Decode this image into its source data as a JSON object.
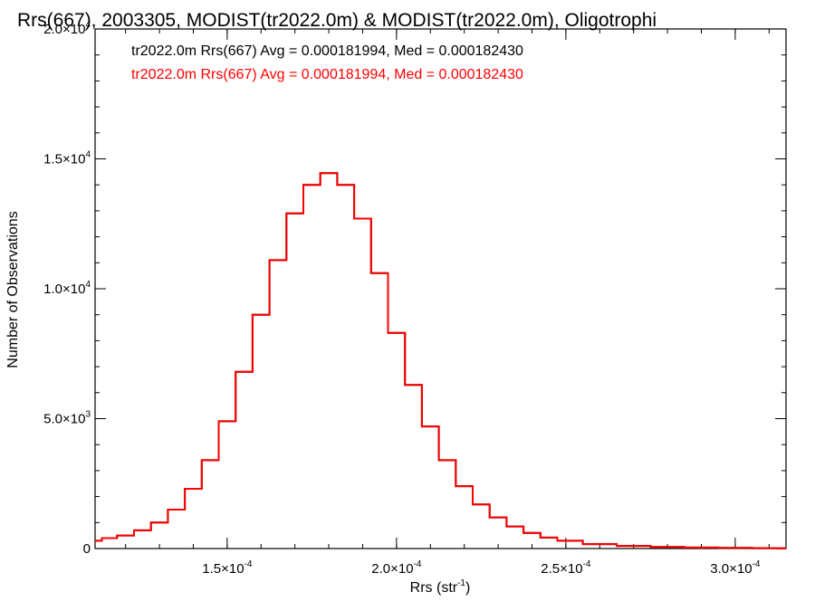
{
  "chart_data": {
    "type": "histogram",
    "title": "Rrs(667), 2003305, MODIST(tr2022.0m) & MODIST(tr2022.0m), Oligotrophi",
    "xlabel": "Rrs (str",
    "xlabel_sup": "-1",
    "xlabel_close": ")",
    "ylabel": "Number of Observations",
    "xlim": [
      0.000111,
      0.000315
    ],
    "ylim": [
      0,
      20000
    ],
    "grid": false,
    "x_ticks": [
      {
        "value": 0.00015,
        "mantissa": "1.5×10",
        "exp": "-4"
      },
      {
        "value": 0.0002,
        "mantissa": "2.0×10",
        "exp": "-4"
      },
      {
        "value": 0.00025,
        "mantissa": "2.5×10",
        "exp": "-4"
      },
      {
        "value": 0.0003,
        "mantissa": "3.0×10",
        "exp": "-4"
      }
    ],
    "y_ticks": [
      {
        "value": 0,
        "mantissa": "0",
        "exp": ""
      },
      {
        "value": 5000,
        "mantissa": "5.0×10",
        "exp": "3"
      },
      {
        "value": 10000,
        "mantissa": "1.0×10",
        "exp": "4"
      },
      {
        "value": 15000,
        "mantissa": "1.5×10",
        "exp": "4"
      },
      {
        "value": 20000,
        "mantissa": "2.0×10",
        "exp": "4"
      }
    ],
    "stats": [
      {
        "text": "tr2022.0m Rrs(667) Avg = 0.000181994, Med = 0.000182430",
        "color": "#000000"
      },
      {
        "text": "tr2022.0m Rrs(667) Avg = 0.000181994, Med = 0.000182430",
        "color": "#ff0000"
      }
    ],
    "series": [
      {
        "color": "#000000",
        "x": [
          0.000111,
          0.000115,
          0.00012,
          0.000125,
          0.00013,
          0.000135,
          0.00014,
          0.000145,
          0.00015,
          0.000155,
          0.00016,
          0.000165,
          0.00017,
          0.000175,
          0.00018,
          0.000185,
          0.00019,
          0.000195,
          0.0002,
          0.000205,
          0.00021,
          0.000215,
          0.00022,
          0.000225,
          0.00023,
          0.000235,
          0.00024,
          0.000245,
          0.00025,
          0.00026,
          0.00027,
          0.00028,
          0.00029,
          0.0003,
          0.00031,
          0.000315
        ],
        "y": [
          300,
          400,
          500,
          700,
          1000,
          1500,
          2300,
          3400,
          4900,
          6800,
          9000,
          11100,
          12900,
          14000,
          14450,
          14000,
          12700,
          10600,
          8300,
          6300,
          4700,
          3400,
          2400,
          1700,
          1200,
          850,
          600,
          420,
          300,
          170,
          100,
          60,
          40,
          25,
          15,
          10
        ]
      },
      {
        "color": "#ff0000",
        "x": [
          0.000111,
          0.000115,
          0.00012,
          0.000125,
          0.00013,
          0.000135,
          0.00014,
          0.000145,
          0.00015,
          0.000155,
          0.00016,
          0.000165,
          0.00017,
          0.000175,
          0.00018,
          0.000185,
          0.00019,
          0.000195,
          0.0002,
          0.000205,
          0.00021,
          0.000215,
          0.00022,
          0.000225,
          0.00023,
          0.000235,
          0.00024,
          0.000245,
          0.00025,
          0.00026,
          0.00027,
          0.00028,
          0.00029,
          0.0003,
          0.00031,
          0.000315
        ],
        "y": [
          300,
          400,
          500,
          700,
          1000,
          1500,
          2300,
          3400,
          4900,
          6800,
          9000,
          11100,
          12900,
          14000,
          14450,
          14000,
          12700,
          10600,
          8300,
          6300,
          4700,
          3400,
          2400,
          1700,
          1200,
          850,
          600,
          420,
          300,
          170,
          100,
          60,
          40,
          25,
          15,
          10
        ]
      }
    ]
  }
}
